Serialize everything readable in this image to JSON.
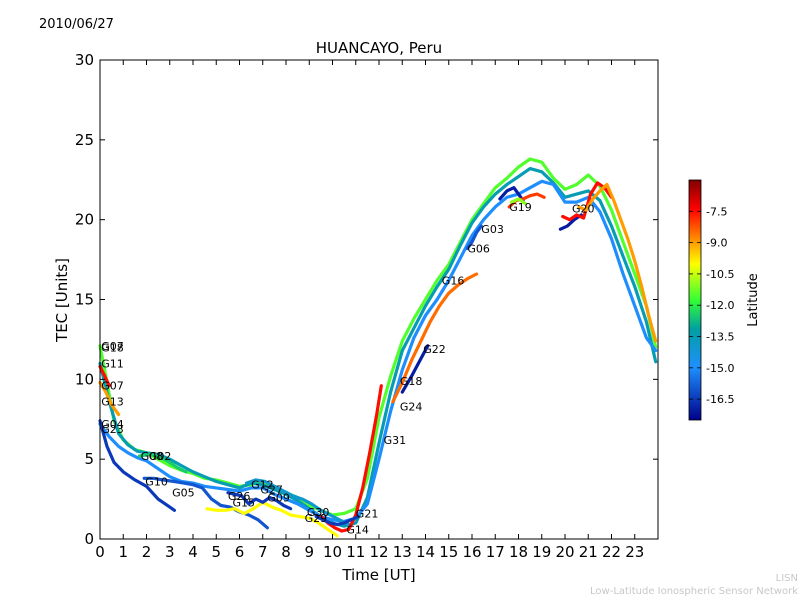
{
  "header": {
    "date": "2010/06/27"
  },
  "footer": {
    "line1": "LISN",
    "line2": "Low-Latitude Ionospheric Sensor Network"
  },
  "chart_data": {
    "type": "scatter",
    "title": "HUANCAYO, Peru",
    "xlabel": "Time [UT]",
    "ylabel": "TEC [Units]",
    "xlim": [
      0,
      24
    ],
    "ylim": [
      0,
      30
    ],
    "xticks": [
      0,
      1,
      2,
      3,
      4,
      5,
      6,
      7,
      8,
      9,
      10,
      11,
      12,
      13,
      14,
      15,
      16,
      17,
      18,
      19,
      20,
      21,
      22,
      23
    ],
    "yticks": [
      0,
      5,
      10,
      15,
      20,
      25,
      30
    ],
    "colorbar": {
      "label": "Latitude",
      "range": [
        -17.5,
        -6.0
      ],
      "ticks": [
        -7.5,
        -9.0,
        -10.5,
        -12.0,
        -13.5,
        -15.0,
        -16.5
      ],
      "tick_labels": [
        "-7.5",
        "-9.0",
        "-10.5",
        "-12.0",
        "-13.5",
        "-15.0",
        "-16.5"
      ]
    },
    "satellite_labels": [
      {
        "name": "G07",
        "x": 0.05,
        "y": 12.1
      },
      {
        "name": "G18",
        "x": 0.05,
        "y": 12.0
      },
      {
        "name": "G11",
        "x": 0.05,
        "y": 11.0
      },
      {
        "name": "G07",
        "x": 0.05,
        "y": 9.6
      },
      {
        "name": "G13",
        "x": 0.05,
        "y": 8.6
      },
      {
        "name": "G04",
        "x": 0.05,
        "y": 7.2
      },
      {
        "name": "G23",
        "x": 0.05,
        "y": 6.9
      },
      {
        "name": "G08",
        "x": 1.75,
        "y": 5.2
      },
      {
        "name": "G02",
        "x": 2.1,
        "y": 5.2
      },
      {
        "name": "G10",
        "x": 1.95,
        "y": 3.6
      },
      {
        "name": "G05",
        "x": 3.1,
        "y": 2.9
      },
      {
        "name": "G26",
        "x": 5.5,
        "y": 2.7
      },
      {
        "name": "G15",
        "x": 5.7,
        "y": 2.3
      },
      {
        "name": "G12",
        "x": 6.5,
        "y": 3.4
      },
      {
        "name": "G27",
        "x": 6.9,
        "y": 3.1
      },
      {
        "name": "G09",
        "x": 7.2,
        "y": 2.6
      },
      {
        "name": "G30",
        "x": 8.9,
        "y": 1.7
      },
      {
        "name": "G29",
        "x": 8.8,
        "y": 1.3
      },
      {
        "name": "G21",
        "x": 11.0,
        "y": 1.6
      },
      {
        "name": "G14",
        "x": 10.6,
        "y": 0.6
      },
      {
        "name": "G31",
        "x": 12.2,
        "y": 6.2
      },
      {
        "name": "G24",
        "x": 12.9,
        "y": 8.3
      },
      {
        "name": "G18",
        "x": 12.9,
        "y": 9.9
      },
      {
        "name": "G22",
        "x": 13.9,
        "y": 11.9
      },
      {
        "name": "G16",
        "x": 14.7,
        "y": 16.2
      },
      {
        "name": "G06",
        "x": 15.8,
        "y": 18.2
      },
      {
        "name": "G03",
        "x": 16.4,
        "y": 19.4
      },
      {
        "name": "G19",
        "x": 17.6,
        "y": 20.8
      },
      {
        "name": "G20",
        "x": 20.3,
        "y": 20.7
      }
    ],
    "series": [
      {
        "name": "track-01",
        "latitude": -11.5,
        "x": [
          0,
          0.3,
          0.6,
          1,
          1.5,
          2,
          2.5,
          3,
          3.5,
          4,
          4.5,
          5,
          5.5,
          6,
          6.5,
          7,
          7.5,
          8,
          8.5,
          9,
          9.5,
          10,
          10.5,
          11,
          11.5,
          12,
          12.5,
          13,
          13.5,
          14,
          14.5,
          15,
          15.5,
          16,
          16.5,
          17,
          17.5,
          18,
          18.5,
          19,
          19.5,
          20,
          20.5,
          21,
          21.5,
          22,
          22.5,
          23,
          23.5,
          23.9
        ],
        "y": [
          12.1,
          9.8,
          7.4,
          6.2,
          5.6,
          5.4,
          5.0,
          4.6,
          4.3,
          4.1,
          3.8,
          3.7,
          3.5,
          3.3,
          3.4,
          3.6,
          3.2,
          2.9,
          2.6,
          2.1,
          1.8,
          1.5,
          1.6,
          1.9,
          3.8,
          7.6,
          10.2,
          12.4,
          13.8,
          15.0,
          16.2,
          17.2,
          18.6,
          20.0,
          21.0,
          22.0,
          22.6,
          23.3,
          23.8,
          23.6,
          22.6,
          21.9,
          22.2,
          22.8,
          22.1,
          20.6,
          18.6,
          16.6,
          14.6,
          12.0
        ]
      },
      {
        "name": "track-02",
        "latitude": -13.5,
        "x": [
          0,
          0.4,
          0.8,
          1.2,
          1.6,
          2,
          2.5,
          3,
          3.5,
          4,
          4.5,
          5,
          5.5,
          6,
          6.5,
          7,
          7.5,
          8,
          8.5,
          9,
          9.5,
          10,
          10.5,
          11,
          11.5,
          12,
          12.5,
          13,
          13.5,
          14,
          14.5,
          15,
          15.5,
          16,
          16.5,
          17,
          17.5,
          18,
          18.5,
          19,
          19.5,
          20,
          20.5,
          21,
          21.5,
          22,
          22.5,
          23,
          23.5,
          23.9
        ],
        "y": [
          11.0,
          8.6,
          6.6,
          5.9,
          5.5,
          5.4,
          5.3,
          5.0,
          4.6,
          4.2,
          3.9,
          3.6,
          3.4,
          3.2,
          3.5,
          3.4,
          3.1,
          2.8,
          2.4,
          1.9,
          1.4,
          1.0,
          0.8,
          1.0,
          2.6,
          6.0,
          9.2,
          11.8,
          13.2,
          14.6,
          15.8,
          16.9,
          18.4,
          19.8,
          20.8,
          21.6,
          22.2,
          22.7,
          23.2,
          23.0,
          22.3,
          21.4,
          21.6,
          21.8,
          21.2,
          19.6,
          17.7,
          15.8,
          13.6,
          11.1
        ]
      },
      {
        "name": "track-03",
        "latitude": -15.0,
        "x": [
          0,
          0.4,
          0.8,
          1.2,
          1.6,
          2,
          2.5,
          3,
          3.5,
          4,
          4.5,
          5,
          5.5,
          6,
          6.5,
          7,
          7.5,
          8,
          8.5,
          9,
          9.5,
          10,
          10.5,
          11,
          11.5,
          12,
          12.5,
          13,
          13.5,
          14,
          14.5,
          15,
          15.5,
          16,
          16.5,
          17,
          17.5,
          18,
          18.5,
          19,
          19.5,
          20,
          20.5,
          21,
          21.5,
          22,
          22.5,
          23,
          23.5,
          23.9
        ],
        "y": [
          7.2,
          6.4,
          5.8,
          5.4,
          5.1,
          4.9,
          4.4,
          3.9,
          3.6,
          3.5,
          3.3,
          3.2,
          3.1,
          3.0,
          3.2,
          3.2,
          2.8,
          2.5,
          2.2,
          1.8,
          1.4,
          1.2,
          1.1,
          1.3,
          2.2,
          5.0,
          8.0,
          10.6,
          12.6,
          14.0,
          15.0,
          16.2,
          17.6,
          19.0,
          20.0,
          20.8,
          21.4,
          21.6,
          22.0,
          22.4,
          22.2,
          21.1,
          21.1,
          21.4,
          20.5,
          18.8,
          16.6,
          14.6,
          12.6,
          11.8
        ]
      },
      {
        "name": "track-04",
        "latitude": -16.5,
        "x": [
          0,
          0.3,
          0.6,
          1,
          1.5,
          2,
          2.5,
          3,
          3.2
        ],
        "y": [
          7.4,
          5.8,
          4.8,
          4.2,
          3.7,
          3.3,
          2.5,
          2.0,
          1.8
        ]
      },
      {
        "name": "track-05",
        "latitude": -16.0,
        "x": [
          1.9,
          2.3,
          2.7,
          3.2,
          3.6,
          4,
          4.4,
          4.8,
          5.2,
          5.6,
          6,
          6.4,
          6.8,
          7.2
        ],
        "y": [
          3.8,
          3.8,
          3.7,
          3.6,
          3.5,
          3.4,
          3.2,
          2.5,
          2.1,
          2.0,
          1.7,
          1.5,
          1.2,
          0.7
        ]
      },
      {
        "name": "track-06",
        "latitude": -9.0,
        "x": [
          0,
          0.25,
          0.5,
          0.8
        ],
        "y": [
          9.8,
          9.2,
          8.4,
          7.8
        ]
      },
      {
        "name": "track-07",
        "latitude": -7.5,
        "x": [
          0,
          0.2,
          0.4
        ],
        "y": [
          10.8,
          10.2,
          9.6
        ]
      },
      {
        "name": "track-08",
        "latitude": -12.5,
        "x": [
          1.7,
          2.1,
          2.5,
          2.9,
          3.3,
          3.7
        ],
        "y": [
          5.2,
          5.3,
          5.2,
          4.9,
          4.5,
          4.2
        ]
      },
      {
        "name": "track-09",
        "latitude": -10.0,
        "x": [
          4.6,
          5.0,
          5.4,
          5.8,
          6.2,
          6.6,
          7.0,
          7.4,
          7.8,
          8.2,
          8.6,
          9.0,
          9.4,
          9.8,
          10.2
        ],
        "y": [
          1.9,
          1.8,
          1.8,
          1.9,
          1.6,
          1.9,
          2.3,
          2.0,
          1.8,
          1.5,
          1.4,
          1.3,
          1.0,
          0.6,
          0.2
        ]
      },
      {
        "name": "track-10",
        "latitude": -16.5,
        "x": [
          5.5,
          5.8,
          6.1,
          6.4,
          6.7,
          7.0,
          7.3,
          7.6,
          7.9,
          8.2
        ],
        "y": [
          2.9,
          2.8,
          2.7,
          2.2,
          2.5,
          2.3,
          2.6,
          2.4,
          2.1,
          1.9
        ]
      },
      {
        "name": "track-11",
        "latitude": -14.0,
        "x": [
          6.3,
          6.7,
          7.1,
          7.5,
          7.9,
          8.3,
          8.7,
          9.1,
          9.5,
          9.9,
          10.3,
          10.7
        ],
        "y": [
          3.5,
          3.7,
          3.6,
          3.3,
          3.0,
          2.7,
          2.5,
          2.2,
          1.8,
          1.5,
          1.2,
          0.9
        ]
      },
      {
        "name": "track-12",
        "latitude": -7.5,
        "x": [
          9.5,
          9.8,
          10.1,
          10.4,
          10.7,
          11.0,
          11.3,
          11.6,
          11.9,
          12.1
        ],
        "y": [
          1.4,
          1.0,
          0.7,
          0.5,
          0.6,
          1.5,
          3.2,
          5.4,
          7.8,
          9.6
        ]
      },
      {
        "name": "track-13",
        "latitude": -16.5,
        "x": [
          9.3,
          9.6,
          9.9,
          10.2,
          10.5,
          10.8,
          11.1
        ],
        "y": [
          1.4,
          1.2,
          1.0,
          0.9,
          1.0,
          1.2,
          1.4
        ]
      },
      {
        "name": "track-14",
        "latitude": -8.5,
        "x": [
          12.6,
          13.0,
          13.4,
          13.8,
          14.2,
          14.6,
          15.0,
          15.4,
          15.8,
          16.2
        ],
        "y": [
          8.6,
          9.8,
          11.2,
          12.4,
          13.6,
          14.6,
          15.4,
          15.9,
          16.3,
          16.6
        ]
      },
      {
        "name": "track-15",
        "latitude": -17.0,
        "x": [
          13.0,
          13.4,
          13.8,
          14.1
        ],
        "y": [
          9.2,
          10.2,
          11.3,
          12.1
        ]
      },
      {
        "name": "track-16",
        "latitude": -16.0,
        "x": [
          15.8,
          16.0,
          16.2,
          16.4
        ],
        "y": [
          18.2,
          18.6,
          19.2,
          19.6
        ]
      },
      {
        "name": "track-17",
        "latitude": -17.0,
        "x": [
          17.2,
          17.5,
          17.8,
          18.0,
          18.2
        ],
        "y": [
          21.3,
          21.8,
          22.0,
          21.6,
          21.2
        ]
      },
      {
        "name": "track-18",
        "latitude": -8.0,
        "x": [
          17.6,
          17.9,
          18.2,
          18.5,
          18.8,
          19.1
        ],
        "y": [
          20.8,
          21.2,
          21.3,
          21.5,
          21.6,
          21.4
        ]
      },
      {
        "name": "track-19",
        "latitude": -11.0,
        "x": [
          17.7,
          18.0,
          18.3
        ],
        "y": [
          21.1,
          21.3,
          21.0
        ]
      },
      {
        "name": "track-20",
        "latitude": -17.0,
        "x": [
          19.8,
          20.1,
          20.4,
          20.7
        ],
        "y": [
          19.4,
          19.6,
          20.0,
          20.3
        ]
      },
      {
        "name": "track-21",
        "latitude": -7.5,
        "x": [
          19.9,
          20.2,
          20.5,
          20.8,
          21.1,
          21.4,
          21.7,
          22.0
        ],
        "y": [
          20.2,
          20.0,
          20.3,
          20.1,
          21.6,
          22.3,
          22.0,
          21.4
        ]
      },
      {
        "name": "track-22",
        "latitude": -9.0,
        "x": [
          20.6,
          20.9,
          21.2,
          21.5,
          21.8,
          22.1,
          22.4,
          22.7,
          23.0,
          23.3,
          23.6,
          23.9
        ],
        "y": [
          20.8,
          20.6,
          21.3,
          21.8,
          22.2,
          21.2,
          20.0,
          18.8,
          17.4,
          15.8,
          14.0,
          12.4
        ]
      }
    ]
  }
}
